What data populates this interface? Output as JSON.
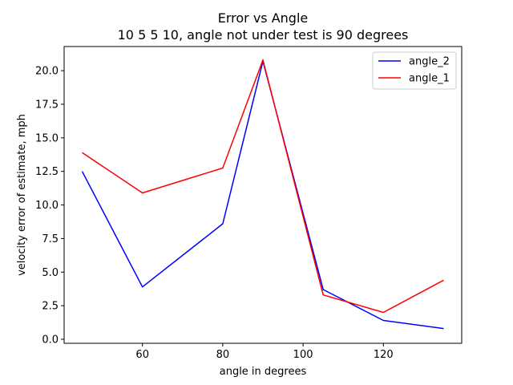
{
  "chart_data": {
    "type": "line",
    "title": "Error vs Angle",
    "subtitle": "10 5 5 10, angle not under test is 90 degrees",
    "xlabel": "angle in degrees",
    "ylabel": "velocity error of estimate, mph",
    "xlim": [
      40.5,
      139.5
    ],
    "ylim": [
      -0.3,
      21.8
    ],
    "xticks": [
      60,
      80,
      100,
      120
    ],
    "xtick_labels": [
      "60",
      "80",
      "100",
      "120"
    ],
    "yticks": [
      0.0,
      2.5,
      5.0,
      7.5,
      10.0,
      12.5,
      15.0,
      17.5,
      20.0
    ],
    "ytick_labels": [
      "0.0",
      "2.5",
      "5.0",
      "7.5",
      "10.0",
      "12.5",
      "15.0",
      "17.5",
      "20.0"
    ],
    "grid": false,
    "legend_position": "top-right",
    "x": [
      45,
      60,
      80,
      90,
      105,
      120,
      135
    ],
    "series": [
      {
        "name": "angle_2",
        "color": "#0000ff",
        "values": [
          12.5,
          3.9,
          8.6,
          20.7,
          3.7,
          1.4,
          0.8
        ]
      },
      {
        "name": "angle_1",
        "color": "#ff0000",
        "values": [
          13.9,
          10.9,
          12.75,
          20.8,
          3.3,
          2.0,
          4.4
        ]
      }
    ]
  }
}
